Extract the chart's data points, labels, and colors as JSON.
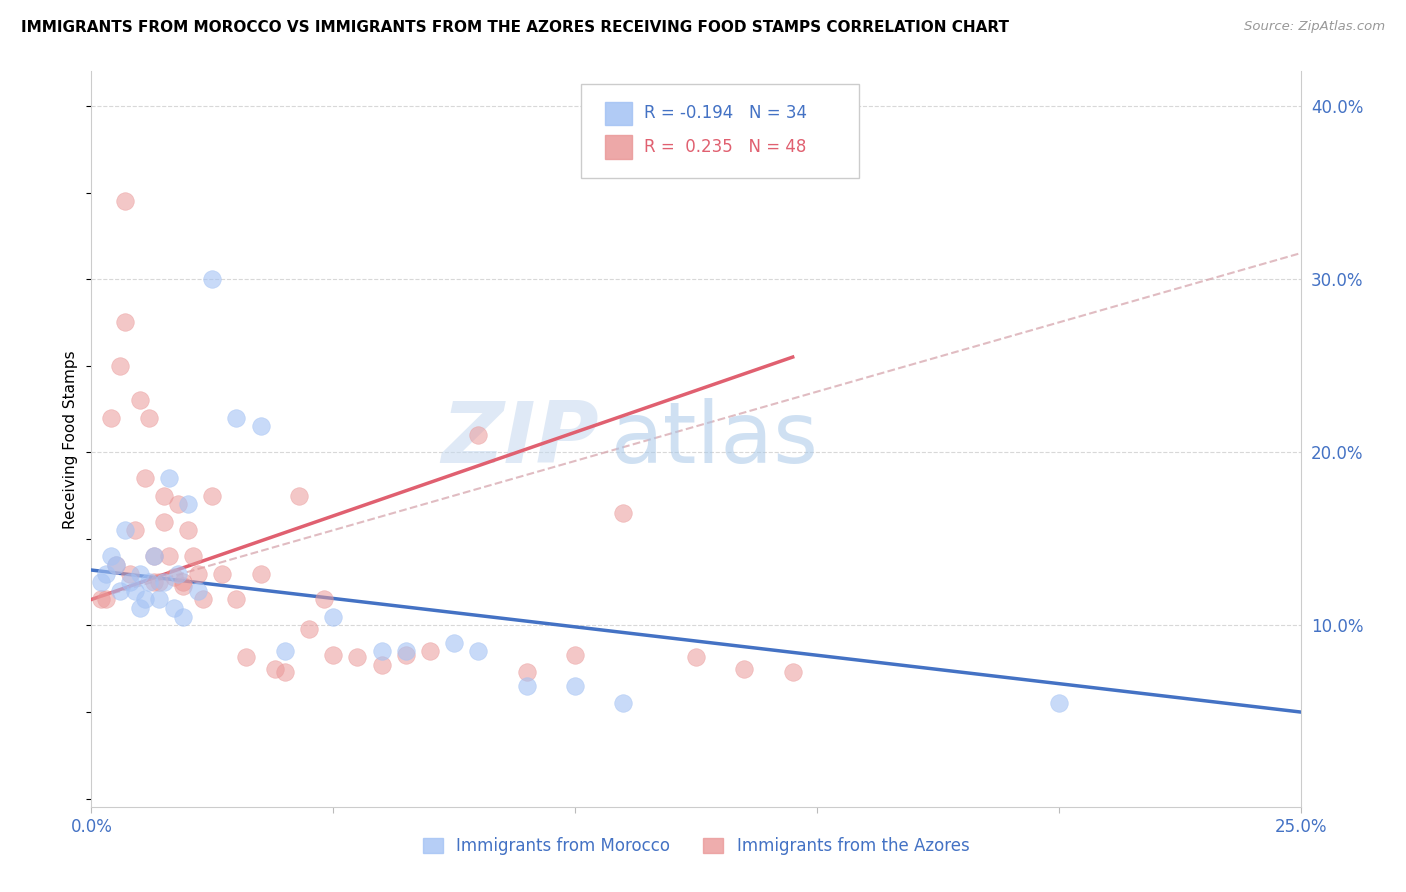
{
  "title": "IMMIGRANTS FROM MOROCCO VS IMMIGRANTS FROM THE AZORES RECEIVING FOOD STAMPS CORRELATION CHART",
  "source": "Source: ZipAtlas.com",
  "ylabel": "Receiving Food Stamps",
  "xlim": [
    0.0,
    0.25
  ],
  "ylim": [
    -0.005,
    0.42
  ],
  "morocco_color": "#a4c2f4",
  "azores_color": "#ea9999",
  "morocco_line_color": "#4472c4",
  "azores_line_color": "#e06070",
  "dashed_line_color": "#d4a0a8",
  "morocco_R": -0.194,
  "morocco_N": 34,
  "azores_R": 0.235,
  "azores_N": 48,
  "legend_morocco": "Immigrants from Morocco",
  "legend_azores": "Immigrants from the Azores",
  "morocco_line_x0": 0.0,
  "morocco_line_y0": 0.132,
  "morocco_line_x1": 0.25,
  "morocco_line_y1": 0.05,
  "azores_line_x0": 0.0,
  "azores_line_y0": 0.115,
  "azores_line_x1": 0.145,
  "azores_line_y1": 0.255,
  "dashed_line_x0": 0.0,
  "dashed_line_y0": 0.115,
  "dashed_line_x1": 0.25,
  "dashed_line_y1": 0.315,
  "morocco_scatter_x": [
    0.002,
    0.003,
    0.004,
    0.005,
    0.006,
    0.007,
    0.008,
    0.009,
    0.01,
    0.01,
    0.011,
    0.012,
    0.013,
    0.014,
    0.015,
    0.016,
    0.017,
    0.018,
    0.019,
    0.02,
    0.022,
    0.025,
    0.03,
    0.035,
    0.04,
    0.05,
    0.06,
    0.065,
    0.075,
    0.08,
    0.09,
    0.1,
    0.11,
    0.2
  ],
  "morocco_scatter_y": [
    0.125,
    0.13,
    0.14,
    0.135,
    0.12,
    0.155,
    0.125,
    0.12,
    0.11,
    0.13,
    0.115,
    0.125,
    0.14,
    0.115,
    0.125,
    0.185,
    0.11,
    0.13,
    0.105,
    0.17,
    0.12,
    0.3,
    0.22,
    0.215,
    0.085,
    0.105,
    0.085,
    0.085,
    0.09,
    0.085,
    0.065,
    0.065,
    0.055,
    0.055
  ],
  "azores_scatter_x": [
    0.002,
    0.003,
    0.004,
    0.005,
    0.006,
    0.007,
    0.007,
    0.008,
    0.009,
    0.01,
    0.011,
    0.012,
    0.013,
    0.013,
    0.014,
    0.015,
    0.015,
    0.016,
    0.017,
    0.018,
    0.019,
    0.019,
    0.02,
    0.021,
    0.022,
    0.023,
    0.025,
    0.027,
    0.03,
    0.032,
    0.035,
    0.038,
    0.04,
    0.043,
    0.045,
    0.048,
    0.05,
    0.055,
    0.06,
    0.065,
    0.07,
    0.08,
    0.09,
    0.1,
    0.11,
    0.125,
    0.135,
    0.145
  ],
  "azores_scatter_y": [
    0.115,
    0.115,
    0.22,
    0.135,
    0.25,
    0.275,
    0.345,
    0.13,
    0.155,
    0.23,
    0.185,
    0.22,
    0.125,
    0.14,
    0.125,
    0.16,
    0.175,
    0.14,
    0.128,
    0.17,
    0.123,
    0.125,
    0.155,
    0.14,
    0.13,
    0.115,
    0.175,
    0.13,
    0.115,
    0.082,
    0.13,
    0.075,
    0.073,
    0.175,
    0.098,
    0.115,
    0.083,
    0.082,
    0.077,
    0.083,
    0.085,
    0.21,
    0.073,
    0.083,
    0.165,
    0.082,
    0.075,
    0.073
  ],
  "watermark_zip": "ZIP",
  "watermark_atlas": "atlas",
  "background_color": "#ffffff",
  "grid_color": "#d8d8d8",
  "ytick_labels": [
    "",
    "10.0%",
    "20.0%",
    "30.0%",
    "40.0%"
  ],
  "xtick_labels": [
    "0.0%",
    "",
    "",
    "",
    "",
    "25.0%"
  ],
  "tick_color": "#4472c4"
}
